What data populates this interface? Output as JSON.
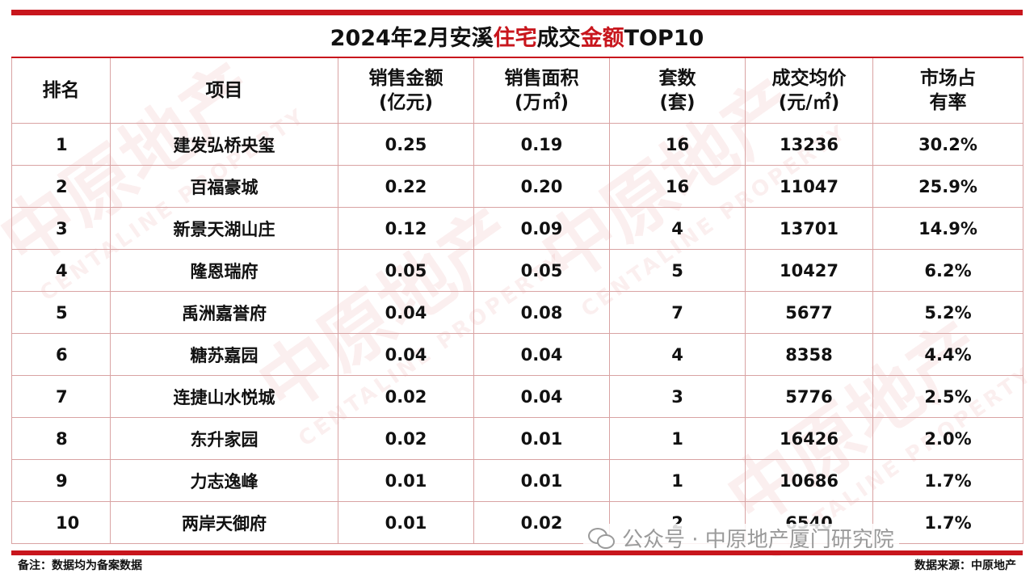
{
  "title": {
    "part1": "2024年2月安溪",
    "highlight1": "住宅",
    "part2": "成交",
    "highlight2": "金额",
    "part3": "TOP10"
  },
  "table": {
    "headers": [
      {
        "line1": "排名",
        "line2": ""
      },
      {
        "line1": "项目",
        "line2": ""
      },
      {
        "line1": "销售金额",
        "line2": "(亿元)"
      },
      {
        "line1": "销售面积",
        "line2": "(万㎡)"
      },
      {
        "line1": "套数",
        "line2": "(套)"
      },
      {
        "line1": "成交均价",
        "line2": "(元/㎡)"
      },
      {
        "line1": "市场占",
        "line2": "有率"
      }
    ],
    "rows": [
      {
        "rank": "1",
        "project": "建发弘桥央玺",
        "amount": "0.25",
        "area": "0.19",
        "units": "16",
        "price": "13236",
        "share": "30.2%"
      },
      {
        "rank": "2",
        "project": "百福豪城",
        "amount": "0.22",
        "area": "0.20",
        "units": "16",
        "price": "11047",
        "share": "25.9%"
      },
      {
        "rank": "3",
        "project": "新景天湖山庄",
        "amount": "0.12",
        "area": "0.09",
        "units": "4",
        "price": "13701",
        "share": "14.9%"
      },
      {
        "rank": "4",
        "project": "隆恩瑞府",
        "amount": "0.05",
        "area": "0.05",
        "units": "5",
        "price": "10427",
        "share": "6.2%"
      },
      {
        "rank": "5",
        "project": "禹洲嘉誉府",
        "amount": "0.04",
        "area": "0.08",
        "units": "7",
        "price": "5677",
        "share": "5.2%"
      },
      {
        "rank": "6",
        "project": "糖苏嘉园",
        "amount": "0.04",
        "area": "0.04",
        "units": "4",
        "price": "8358",
        "share": "4.4%"
      },
      {
        "rank": "7",
        "project": "连捷山水悦城",
        "amount": "0.02",
        "area": "0.04",
        "units": "3",
        "price": "5776",
        "share": "2.5%"
      },
      {
        "rank": "8",
        "project": "东升家园",
        "amount": "0.02",
        "area": "0.01",
        "units": "1",
        "price": "16426",
        "share": "2.0%"
      },
      {
        "rank": "9",
        "project": "力志逸峰",
        "amount": "0.01",
        "area": "0.01",
        "units": "1",
        "price": "10686",
        "share": "1.7%"
      },
      {
        "rank": "10",
        "project": "两岸天御府",
        "amount": "0.01",
        "area": "0.02",
        "units": "2",
        "price": "6540",
        "share": "1.7%"
      }
    ]
  },
  "footer": {
    "note": "备注：数据均为备案数据",
    "source": "数据来源：中原地产"
  },
  "wechat_sticker": {
    "text": "公众号 · 中原地产厦门研究院",
    "icon": "wechat-icon"
  },
  "watermark": {
    "text": "中原地产",
    "sub": "CENTALINE PROPERTY"
  },
  "colors": {
    "accent": "#c8161d",
    "border": "#d9a3a3",
    "text": "#111111"
  }
}
